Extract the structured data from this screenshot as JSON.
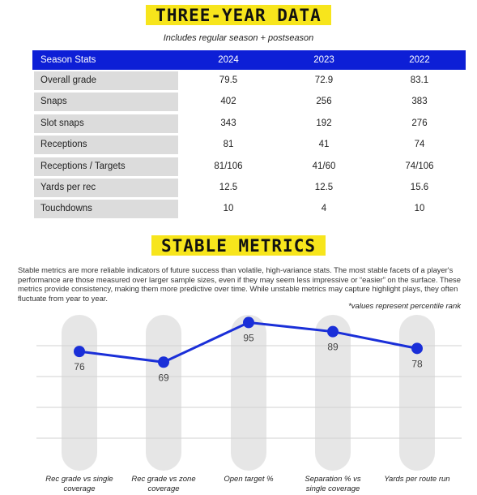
{
  "header": {
    "title": "THREE-YEAR DATA",
    "subtitle": "Includes regular season + postseason"
  },
  "table": {
    "columns": [
      "Season Stats",
      "2024",
      "2023",
      "2022"
    ],
    "rows": [
      [
        "Overall grade",
        "79.5",
        "72.9",
        "83.1"
      ],
      [
        "Snaps",
        "402",
        "256",
        "383"
      ],
      [
        "Slot snaps",
        "343",
        "192",
        "276"
      ],
      [
        "Receptions",
        "81",
        "41",
        "74"
      ],
      [
        "Receptions / Targets",
        "81/106",
        "41/60",
        "74/106"
      ],
      [
        "Yards per rec",
        "12.5",
        "12.5",
        "15.6"
      ],
      [
        "Touchdowns",
        "10",
        "4",
        "10"
      ]
    ]
  },
  "section": {
    "title": "STABLE METRICS",
    "body": "Stable metrics are more reliable indicators of future success than volatile, high-variance stats. The most stable facets of a player's performance are those measured over larger sample sizes, even if they may seem less impressive or “easier” on the surface. These metrics provide consistency, making them more predictive over time. While unstable metrics may capture highlight plays, they often fluctuate from year to year.",
    "note": "*values represent percentile rank"
  },
  "chart_data": {
    "type": "line",
    "categories": [
      "Rec grade vs single coverage",
      "Rec grade vs zone coverage",
      "Open target %",
      "Separation % vs single coverage",
      "Yards per route run"
    ],
    "values": [
      76,
      69,
      95,
      89,
      78
    ],
    "color": "#1a2fd8",
    "ylim": [
      0,
      100
    ]
  }
}
